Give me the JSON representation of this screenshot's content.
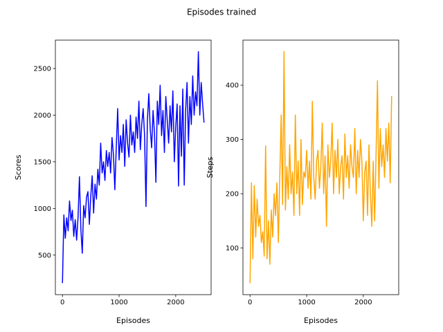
{
  "title": "Episodes trained",
  "chart_data": [
    {
      "type": "line",
      "xlabel": "Episodes",
      "ylabel": "Scores",
      "color": "#0000ff",
      "x": [
        0,
        25,
        50,
        75,
        100,
        125,
        150,
        175,
        200,
        225,
        250,
        275,
        300,
        325,
        350,
        375,
        400,
        425,
        450,
        475,
        500,
        525,
        550,
        575,
        600,
        625,
        650,
        675,
        700,
        725,
        750,
        775,
        800,
        825,
        850,
        875,
        900,
        925,
        950,
        975,
        1000,
        1025,
        1050,
        1075,
        1100,
        1125,
        1150,
        1175,
        1200,
        1225,
        1250,
        1275,
        1300,
        1325,
        1350,
        1375,
        1400,
        1425,
        1450,
        1475,
        1500,
        1525,
        1550,
        1575,
        1600,
        1625,
        1650,
        1675,
        1700,
        1725,
        1750,
        1775,
        1800,
        1825,
        1850,
        1875,
        1900,
        1925,
        1950,
        1975,
        2000,
        2025,
        2050,
        2075,
        2100,
        2125,
        2150,
        2175,
        2200,
        2225,
        2250,
        2275,
        2300,
        2325,
        2350,
        2375,
        2400,
        2425,
        2450,
        2475,
        2500
      ],
      "values": [
        200,
        930,
        680,
        900,
        760,
        1080,
        870,
        980,
        700,
        880,
        660,
        900,
        1340,
        780,
        520,
        1030,
        900,
        1120,
        1180,
        830,
        1130,
        1350,
        950,
        1260,
        1100,
        1420,
        1250,
        1700,
        1380,
        1500,
        1300,
        1620,
        1450,
        1600,
        1380,
        1760,
        1580,
        1200,
        1650,
        2070,
        1520,
        1780,
        1600,
        1900,
        1450,
        1950,
        1700,
        1550,
        2000,
        1680,
        1820,
        1600,
        1980,
        1750,
        2150,
        1630,
        1900,
        2070,
        1780,
        1020,
        1950,
        2230,
        1850,
        1650,
        2050,
        1800,
        1280,
        2150,
        1900,
        2320,
        1780,
        2050,
        1600,
        2200,
        1950,
        1700,
        2100,
        1820,
        2260,
        1500,
        1870,
        2120,
        1240,
        2100,
        1560,
        2280,
        1250,
        2050,
        2350,
        1700,
        2200,
        1900,
        2420,
        2000,
        2250,
        2100,
        2680,
        2000,
        2350,
        2120,
        1920
      ],
      "xlim": [
        -125,
        2625
      ],
      "xticks": [
        0,
        1000,
        2000
      ],
      "ylim": [
        76,
        2804
      ],
      "yticks": [
        500,
        1000,
        1500,
        2000,
        2500
      ]
    },
    {
      "type": "line",
      "xlabel": "Episodes",
      "ylabel": "Steps",
      "color": "#ffa500",
      "x": [
        0,
        25,
        50,
        75,
        100,
        125,
        150,
        175,
        200,
        225,
        250,
        275,
        300,
        325,
        350,
        375,
        400,
        425,
        450,
        475,
        500,
        525,
        550,
        575,
        600,
        625,
        650,
        675,
        700,
        725,
        750,
        775,
        800,
        825,
        850,
        875,
        900,
        925,
        950,
        975,
        1000,
        1025,
        1050,
        1075,
        1100,
        1125,
        1150,
        1175,
        1200,
        1225,
        1250,
        1275,
        1300,
        1325,
        1350,
        1375,
        1400,
        1425,
        1450,
        1475,
        1500,
        1525,
        1550,
        1575,
        1600,
        1625,
        1650,
        1675,
        1700,
        1725,
        1750,
        1775,
        1800,
        1825,
        1850,
        1875,
        1900,
        1925,
        1950,
        1975,
        2000,
        2025,
        2050,
        2075,
        2100,
        2125,
        2150,
        2175,
        2200,
        2225,
        2250,
        2275,
        2300,
        2325,
        2350,
        2375,
        2400,
        2425,
        2450,
        2475,
        2500
      ],
      "values": [
        35,
        220,
        80,
        215,
        120,
        190,
        140,
        160,
        110,
        130,
        85,
        288,
        80,
        150,
        70,
        170,
        120,
        200,
        160,
        220,
        110,
        230,
        345,
        180,
        462,
        170,
        250,
        190,
        290,
        200,
        240,
        160,
        345,
        200,
        260,
        160,
        300,
        180,
        240,
        230,
        280,
        210,
        260,
        190,
        370,
        230,
        190,
        260,
        280,
        210,
        250,
        330,
        200,
        270,
        140,
        290,
        230,
        260,
        330,
        200,
        280,
        230,
        300,
        200,
        250,
        270,
        190,
        310,
        230,
        270,
        210,
        290,
        250,
        230,
        320,
        200,
        280,
        230,
        300,
        260,
        150,
        240,
        260,
        160,
        290,
        200,
        140,
        260,
        150,
        270,
        408,
        210,
        320,
        250,
        290,
        230,
        320,
        260,
        330,
        220,
        380
      ],
      "xlim": [
        -125,
        2625
      ],
      "xticks": [
        0,
        1000,
        2000
      ],
      "ylim": [
        14,
        483
      ],
      "yticks": [
        100,
        200,
        300,
        400
      ]
    }
  ]
}
